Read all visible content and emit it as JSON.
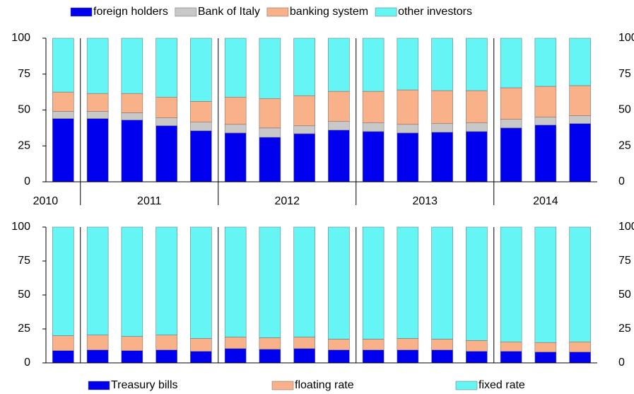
{
  "chart_data": [
    {
      "type": "stacked_bar",
      "legend": "top",
      "categories": [
        "2010",
        "2011",
        null,
        null,
        null,
        "2012",
        null,
        null,
        null,
        "2013",
        null,
        null,
        null,
        "2014",
        null,
        null
      ],
      "series": [
        {
          "name": "foreign holders",
          "color": "#0000ee",
          "values": [
            44,
            44,
            43,
            39,
            35.5,
            34,
            31,
            33.5,
            36,
            35,
            34,
            34.5,
            35,
            37.5,
            39.5,
            40.5
          ]
        },
        {
          "name": "Bank of Italy",
          "color": "#c8c8c8",
          "values": [
            5,
            5,
            5,
            5.5,
            6,
            6,
            6.5,
            5.5,
            6,
            6,
            6,
            6,
            6,
            6,
            5.5,
            5.5
          ]
        },
        {
          "name": "banking system",
          "color": "#f9b189",
          "values": [
            13.5,
            12.5,
            13.5,
            14.5,
            14.5,
            19,
            20.5,
            21,
            21,
            22,
            24,
            23,
            22.5,
            22,
            21.5,
            21
          ]
        },
        {
          "name": "other investors",
          "color": "#66f5f5",
          "values": [
            37.5,
            38.5,
            38.5,
            41,
            44,
            41,
            42,
            40,
            37,
            37,
            36,
            36.5,
            36.5,
            34.5,
            33.5,
            33
          ]
        }
      ],
      "ylim": [
        0,
        100
      ],
      "yticks": [
        0,
        25,
        50,
        75,
        100
      ]
    },
    {
      "type": "stacked_bar",
      "legend": "bottom",
      "categories": [
        null,
        null,
        null,
        null,
        null,
        null,
        null,
        null,
        null,
        null,
        null,
        null,
        null,
        null,
        null,
        null
      ],
      "series": [
        {
          "name": "Treasury bills",
          "color": "#0000ee",
          "values": [
            9,
            9.5,
            9,
            9.5,
            8.5,
            10.5,
            10,
            10.5,
            9.5,
            9.5,
            9.5,
            9.5,
            8.5,
            8.5,
            8,
            8
          ]
        },
        {
          "name": "floating rate",
          "color": "#f9b189",
          "values": [
            11,
            11,
            10.5,
            11,
            9.5,
            8.5,
            8.5,
            8.5,
            8,
            8,
            8.5,
            8,
            8,
            7,
            7,
            7.5
          ]
        },
        {
          "name": "fixed rate",
          "color": "#66f5f5",
          "values": [
            80,
            79.5,
            80.5,
            79.5,
            82,
            81,
            81.5,
            81,
            82.5,
            82.5,
            82,
            82.5,
            83.5,
            84.5,
            85,
            84.5
          ]
        }
      ],
      "ylim": [
        0,
        100
      ],
      "yticks": [
        0,
        25,
        50,
        75,
        100
      ]
    }
  ]
}
